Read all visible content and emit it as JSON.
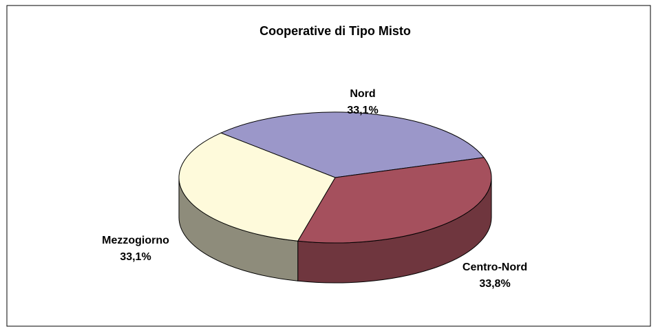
{
  "chart_data": {
    "type": "pie3d",
    "title": "Cooperative di Tipo Misto",
    "categories": [
      "Nord",
      "Centro-Nord",
      "Mezzogiorno"
    ],
    "values": [
      33.1,
      33.8,
      33.1
    ],
    "value_labels": [
      "33,1%",
      "33,8%",
      "33,1%"
    ],
    "colors": [
      "#9b97c9",
      "#a5505d",
      "#fefadb"
    ]
  }
}
